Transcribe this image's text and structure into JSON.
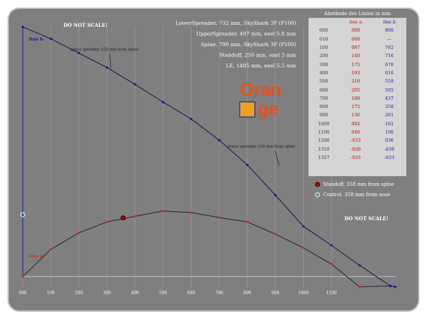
{
  "chart_data": {
    "type": "line",
    "notes": [
      "LowerSpreader, 732 mm, SkyShark 3P (P100)",
      "UpperSpreader, 497 mm, exel 5.8 mm",
      "Spine, 790 mm, SkyShark 3P (P100)",
      "Standoff, 250 mm, exel 3 mm",
      "LE, 1485 mm, exel 5.5 mm"
    ],
    "warnings": [
      "DO NOT SCALE!",
      "DO NOT SCALE!"
    ],
    "logo": [
      "Oran",
      "ge"
    ],
    "annotations": [
      {
        "text": "upper spreader 250 mm from spine",
        "x": 290
      },
      {
        "text": "lower spreader 330 mm from spine",
        "x": 850
      }
    ],
    "x": [
      0,
      100,
      200,
      300,
      400,
      500,
      600,
      700,
      800,
      900,
      1000,
      1100,
      1200,
      1310,
      1327
    ],
    "series": [
      {
        "name": "line a",
        "color": "#d03020",
        "values": [
          0,
          87,
          140,
          175,
          193,
          210,
          205,
          189,
          175,
          136,
          92,
          40,
          -33,
          -30,
          -33
        ]
      },
      {
        "name": "line b",
        "color": "#1a1aa0",
        "values": [
          800,
          762,
          716,
          670,
          616,
          559,
          505,
          437,
          358,
          261,
          161,
          100,
          36,
          -30,
          -33
        ]
      }
    ],
    "markers": [
      {
        "name": "Standoff, 358 mm from spine",
        "color": "#c00000",
        "x": 358,
        "y": 188
      },
      {
        "name": "Control, 358 mm from nose",
        "color": "#bff0f0",
        "x": 0,
        "y": 198
      }
    ],
    "xlim": [
      0,
      1330
    ],
    "ylim": [
      -40,
      820
    ],
    "xticks": [
      {
        "value": 0,
        "label": "000"
      },
      100,
      200,
      300,
      400,
      500,
      600,
      700,
      800,
      900,
      1000,
      1100
    ],
    "grid": true
  },
  "table": {
    "caption": "Abstände der Linien in mm",
    "header": [
      "",
      "line a",
      "line b"
    ],
    "rows": [
      [
        "000",
        "000",
        "800"
      ],
      [
        "010",
        "000",
        "—"
      ],
      [
        "100",
        "087",
        "762"
      ],
      [
        "200",
        "140",
        "716"
      ],
      [
        "300",
        "175",
        "670"
      ],
      [
        "400",
        "193",
        "616"
      ],
      [
        "500",
        "210",
        "559"
      ],
      [
        "600",
        "205",
        "505"
      ],
      [
        "700",
        "189",
        "437"
      ],
      [
        "800",
        "175",
        "358"
      ],
      [
        "900",
        "136",
        "261"
      ],
      [
        "1000",
        "092",
        "161"
      ],
      [
        "1100",
        "040",
        "100"
      ],
      [
        "1200",
        "-033",
        "036"
      ],
      [
        "1310",
        "-030",
        "-030"
      ],
      [
        "1327",
        "-033",
        "-033"
      ]
    ]
  }
}
